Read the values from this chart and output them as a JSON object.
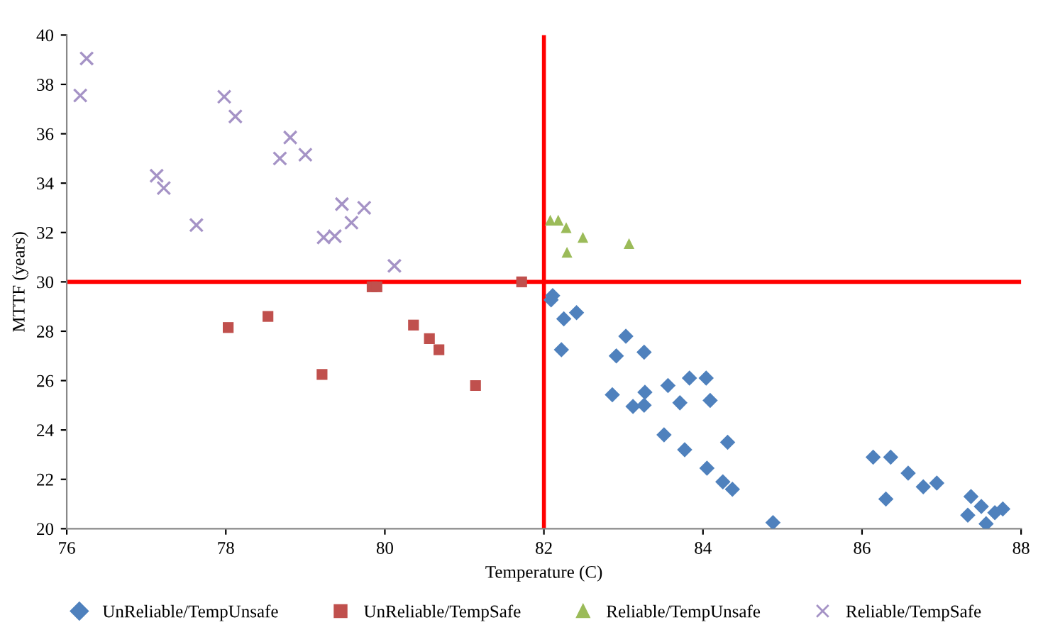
{
  "chart_data": {
    "type": "scatter",
    "xlabel": "Temperature (C)",
    "ylabel": "MTTF (years)",
    "xlim": [
      76,
      88
    ],
    "xticks": [
      76,
      78,
      80,
      82,
      84,
      86,
      88
    ],
    "ylim": [
      20,
      40
    ],
    "yticks": [
      20,
      22,
      24,
      26,
      28,
      30,
      32,
      34,
      36,
      38,
      40
    ],
    "grid": false,
    "legend": "bottom",
    "ref_lines": [
      {
        "axis": "x",
        "value": 82,
        "color": "#ff0000"
      },
      {
        "axis": "y",
        "value": 30,
        "color": "#ff0000"
      }
    ],
    "series": [
      {
        "name": "UnReliable/TempUnsafe",
        "color": "#4f81bd",
        "marker": "diamond",
        "x": [
          82.09,
          82.11,
          82.25,
          82.41,
          82.22,
          83.03,
          82.91,
          83.26,
          82.86,
          83.12,
          83.26,
          83.27,
          83.56,
          83.71,
          83.83,
          84.04,
          84.09,
          83.51,
          83.77,
          84.31,
          84.05,
          84.25,
          84.37,
          84.88,
          86.14,
          86.36,
          86.3,
          86.58,
          86.77,
          86.94,
          87.37,
          87.33,
          87.5,
          87.56,
          87.67,
          87.77
        ],
        "values": [
          29.27,
          29.44,
          28.5,
          28.75,
          27.25,
          27.8,
          27.0,
          27.15,
          25.43,
          24.95,
          25.0,
          25.53,
          25.8,
          25.1,
          26.1,
          26.1,
          25.2,
          23.8,
          23.2,
          23.5,
          22.45,
          21.9,
          21.6,
          20.25,
          22.9,
          22.9,
          21.2,
          22.25,
          21.7,
          21.85,
          21.3,
          20.55,
          20.9,
          20.2,
          20.65,
          20.8
        ]
      },
      {
        "name": "UnReliable/TempSafe",
        "color": "#c0504d",
        "marker": "square",
        "x": [
          78.03,
          78.53,
          79.21,
          79.84,
          79.9,
          80.36,
          80.56,
          80.68,
          81.14,
          81.72
        ],
        "values": [
          28.15,
          28.6,
          26.25,
          29.8,
          29.8,
          28.25,
          27.7,
          27.25,
          25.8,
          30.0
        ]
      },
      {
        "name": "Reliable/TempUnsafe",
        "color": "#9bbb59",
        "marker": "triangle",
        "x": [
          82.08,
          82.18,
          82.28,
          82.49,
          82.29,
          83.07
        ],
        "values": [
          32.5,
          32.5,
          32.2,
          31.8,
          31.2,
          31.55
        ]
      },
      {
        "name": "Reliable/TempSafe",
        "color": "#a593c6",
        "marker": "cross",
        "x": [
          76.17,
          76.25,
          77.13,
          77.22,
          77.63,
          77.98,
          78.12,
          78.68,
          78.81,
          79.0,
          79.23,
          79.37,
          79.46,
          79.58,
          79.74,
          80.12
        ],
        "values": [
          37.55,
          39.05,
          34.3,
          33.8,
          32.3,
          37.5,
          36.7,
          35.0,
          35.85,
          35.15,
          31.8,
          31.85,
          33.15,
          32.4,
          33.0,
          30.65
        ]
      }
    ]
  }
}
